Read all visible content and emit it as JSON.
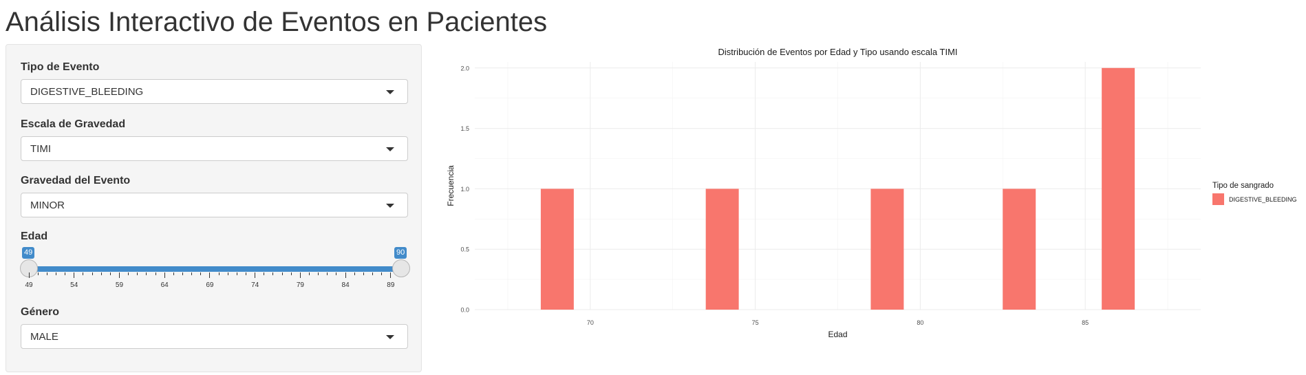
{
  "title": "Análisis Interactivo de Eventos en Pacientes",
  "controls": {
    "event_type": {
      "label": "Tipo de Evento",
      "value": "DIGESTIVE_BLEEDING"
    },
    "scale": {
      "label": "Escala de Gravedad",
      "value": "TIMI"
    },
    "severity": {
      "label": "Gravedad del Evento",
      "value": "MINOR"
    },
    "age": {
      "label": "Edad",
      "min": 49,
      "max": 90,
      "low": "49",
      "high": "90",
      "ticks": [
        "49",
        "54",
        "59",
        "64",
        "69",
        "74",
        "79",
        "84",
        "89"
      ]
    },
    "gender": {
      "label": "Género",
      "value": "MALE"
    }
  },
  "chart_data": {
    "type": "bar",
    "title": "Distribución de Eventos por Edad y Tipo usando escala TIMI",
    "xlabel": "Edad",
    "ylabel": "Frecuencia",
    "xlim": [
      66.5,
      88.5
    ],
    "ylim": [
      0,
      2.05
    ],
    "xticks": [
      70,
      75,
      80,
      85
    ],
    "xtick_labels": [
      "70",
      "75",
      "80",
      "85"
    ],
    "yticks": [
      0,
      0.5,
      1,
      1.5,
      2
    ],
    "ytick_labels": [
      "0.0",
      "0.5",
      "1.0",
      "1.5",
      "2.0"
    ],
    "bar_width": 1,
    "grid": true,
    "legend_position": "right",
    "legend": {
      "title": "Tipo de sangrado",
      "entries": [
        "DIGESTIVE_BLEEDING"
      ]
    },
    "series": [
      {
        "name": "DIGESTIVE_BLEEDING",
        "color": "#f8766d",
        "x": [
          69,
          74,
          79,
          83,
          86
        ],
        "values": [
          1,
          1,
          1,
          1,
          2
        ]
      }
    ]
  }
}
